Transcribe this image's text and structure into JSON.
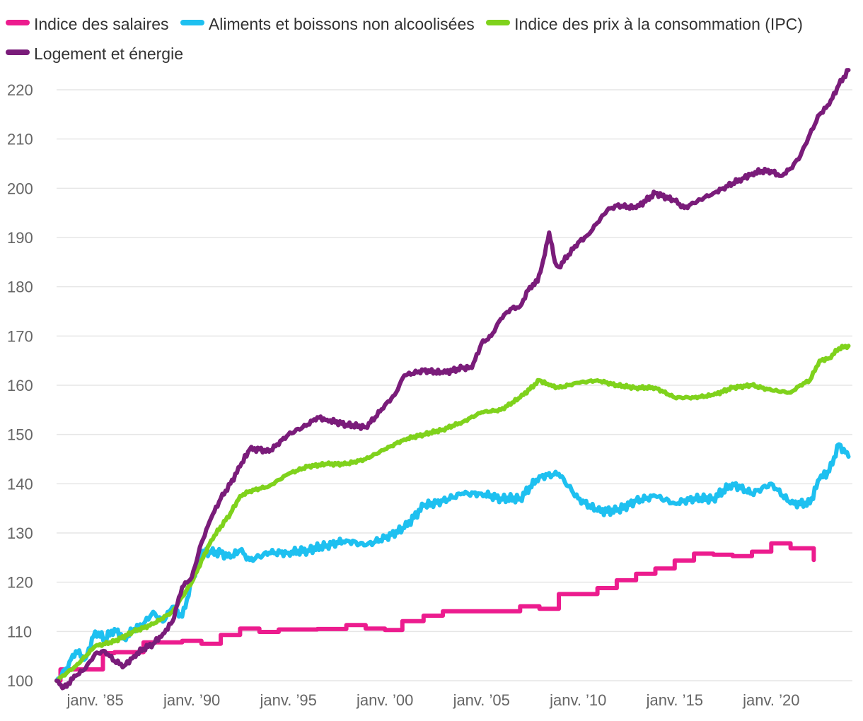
{
  "chart_data": {
    "type": "line",
    "xlabel": "",
    "ylabel": "",
    "ylim": [
      100,
      225
    ],
    "yticks": [
      100,
      110,
      120,
      130,
      140,
      150,
      160,
      170,
      180,
      190,
      200,
      210,
      220
    ],
    "xticks": [
      {
        "label": "janv. ’85",
        "x": 1985
      },
      {
        "label": "janv. ’90",
        "x": 1990
      },
      {
        "label": "janv. ’95",
        "x": 1995
      },
      {
        "label": "janv. ’00",
        "x": 2000
      },
      {
        "label": "janv. ’05",
        "x": 2005
      },
      {
        "label": "janv. ’10",
        "x": 2010
      },
      {
        "label": "janv. ’15",
        "x": 2015
      },
      {
        "label": "janv. ’20",
        "x": 2020
      }
    ],
    "xlim": [
      1983.0,
      2024.2
    ],
    "grid": true,
    "legend_position": "top",
    "series": [
      {
        "name": "Indice des salaires",
        "color": "#ec1c8e",
        "step": true,
        "x": [
          1983.0,
          1983.2,
          1985.0,
          1985.4,
          1986.0,
          1987.5,
          1989.5,
          1990.5,
          1991.5,
          1992.5,
          1993.5,
          1994.5,
          1996.5,
          1998.0,
          1999.0,
          2000.0,
          2000.9,
          2002.0,
          2003.0,
          2006.0,
          2007.0,
          2008.0,
          2009.0,
          2011.0,
          2012.0,
          2013.0,
          2014.0,
          2015.0,
          2016.0,
          2017.0,
          2018.0,
          2019.0,
          2020.0,
          2021.0,
          2022.2
        ],
        "y": [
          100.0,
          102.3,
          102.3,
          105.6,
          105.8,
          107.8,
          108.1,
          107.5,
          109.3,
          110.6,
          109.9,
          110.4,
          110.5,
          111.3,
          110.6,
          110.3,
          112.1,
          113.2,
          114.1,
          114.1,
          115.1,
          114.6,
          117.6,
          118.8,
          120.4,
          121.7,
          122.8,
          124.4,
          125.8,
          125.6,
          125.3,
          126.2,
          127.9,
          126.9,
          124.5
        ]
      },
      {
        "name": "Aliments et boissons non alcoolisées",
        "color": "#1ec0f0",
        "x": [
          1983.0,
          1983.5,
          1984.0,
          1984.5,
          1985.0,
          1985.5,
          1986.0,
          1986.5,
          1987.0,
          1987.5,
          1988.0,
          1988.5,
          1989.0,
          1989.5,
          1990.0,
          1990.5,
          1991.0,
          1991.5,
          1992.0,
          1992.5,
          1993.0,
          1994.0,
          1995.0,
          1996.0,
          1997.0,
          1998.0,
          1999.0,
          2000.0,
          2001.0,
          2002.0,
          2003.0,
          2004.0,
          2005.0,
          2006.0,
          2007.0,
          2008.0,
          2009.0,
          2010.0,
          2011.0,
          2012.0,
          2013.0,
          2014.0,
          2015.0,
          2016.0,
          2017.0,
          2018.0,
          2019.0,
          2020.0,
          2021.0,
          2022.0,
          2022.5,
          2023.0,
          2023.5,
          2024.0
        ],
        "y": [
          100.0,
          102.5,
          106.0,
          104.5,
          110.0,
          108.5,
          110.5,
          108.5,
          110.5,
          111.5,
          114.0,
          112.0,
          115.0,
          113.0,
          120.0,
          126.0,
          126.0,
          126.0,
          125.0,
          126.5,
          124.5,
          126.0,
          126.0,
          126.5,
          127.5,
          128.5,
          127.5,
          129.0,
          131.0,
          135.5,
          136.5,
          138.0,
          138.0,
          137.0,
          137.0,
          141.5,
          142.0,
          137.0,
          134.5,
          134.5,
          136.5,
          137.5,
          136.0,
          137.0,
          137.0,
          140.0,
          138.0,
          140.0,
          136.0,
          136.0,
          141.0,
          142.5,
          148.0,
          145.5
        ]
      },
      {
        "name": "Indice des prix à la consommation (IPC)",
        "color": "#7fd21c",
        "x": [
          1983.0,
          1984.0,
          1985.0,
          1986.0,
          1987.0,
          1988.0,
          1989.0,
          1990.0,
          1991.0,
          1992.0,
          1992.5,
          1993.0,
          1994.0,
          1995.0,
          1996.0,
          1997.0,
          1998.0,
          1999.0,
          2000.0,
          2001.0,
          2002.0,
          2003.0,
          2004.0,
          2005.0,
          2006.0,
          2007.0,
          2008.0,
          2008.5,
          2009.0,
          2010.0,
          2011.0,
          2012.0,
          2013.0,
          2014.0,
          2015.0,
          2016.0,
          2017.0,
          2018.0,
          2019.0,
          2020.0,
          2021.0,
          2021.5,
          2022.0,
          2022.5,
          2023.0,
          2023.5,
          2024.0
        ],
        "y": [
          100.0,
          103.0,
          107.0,
          108.0,
          110.0,
          111.5,
          114.0,
          120.0,
          128.5,
          134.0,
          137.5,
          138.5,
          139.5,
          142.0,
          143.5,
          144.0,
          144.0,
          145.0,
          147.0,
          149.0,
          150.0,
          151.0,
          152.5,
          154.5,
          155.0,
          157.5,
          161.0,
          160.0,
          159.5,
          160.5,
          161.0,
          160.0,
          159.5,
          159.5,
          157.5,
          157.5,
          158.0,
          159.5,
          160.0,
          159.0,
          158.5,
          160.0,
          161.0,
          165.0,
          165.5,
          167.5,
          168.0
        ]
      },
      {
        "name": "Logement et énergie",
        "color": "#7a1c7a",
        "x": [
          1983.0,
          1983.3,
          1983.6,
          1984.0,
          1984.5,
          1985.0,
          1985.5,
          1986.0,
          1986.5,
          1987.0,
          1987.5,
          1988.0,
          1988.5,
          1989.0,
          1989.5,
          1990.0,
          1990.5,
          1991.0,
          1991.5,
          1992.0,
          1992.5,
          1993.0,
          1993.5,
          1994.0,
          1995.0,
          1996.0,
          1996.5,
          1997.0,
          1998.0,
          1999.0,
          1999.5,
          2000.0,
          2000.5,
          2001.0,
          2002.0,
          2003.0,
          2004.0,
          2004.5,
          2005.0,
          2005.5,
          2006.0,
          2006.5,
          2007.0,
          2007.5,
          2007.9,
          2008.2,
          2008.5,
          2008.8,
          2009.0,
          2009.5,
          2010.0,
          2010.5,
          2011.0,
          2011.5,
          2012.0,
          2013.0,
          2014.0,
          2015.0,
          2015.5,
          2016.0,
          2016.5,
          2017.0,
          2017.5,
          2018.0,
          2018.5,
          2019.0,
          2019.5,
          2020.0,
          2020.5,
          2021.0,
          2021.5,
          2022.0,
          2022.5,
          2023.0,
          2023.5,
          2024.0
        ],
        "y": [
          100.0,
          98.5,
          99.5,
          101.0,
          102.5,
          105.5,
          106.0,
          104.0,
          103.0,
          105.0,
          106.5,
          107.5,
          109.5,
          112.0,
          119.0,
          121.0,
          128.0,
          133.0,
          137.0,
          140.0,
          143.5,
          147.0,
          147.0,
          146.5,
          150.0,
          152.0,
          153.5,
          153.0,
          152.0,
          151.5,
          153.5,
          156.0,
          158.0,
          162.0,
          163.0,
          162.5,
          163.5,
          163.5,
          168.5,
          170.0,
          173.5,
          175.5,
          176.0,
          180.0,
          181.0,
          185.5,
          191.0,
          185.0,
          184.0,
          186.5,
          189.0,
          190.5,
          193.0,
          195.5,
          196.5,
          196.0,
          199.0,
          197.5,
          196.0,
          197.0,
          198.0,
          199.0,
          200.0,
          201.0,
          202.0,
          203.0,
          203.5,
          203.5,
          202.5,
          204.0,
          206.5,
          211.0,
          215.0,
          217.0,
          221.0,
          224.0
        ]
      }
    ]
  }
}
